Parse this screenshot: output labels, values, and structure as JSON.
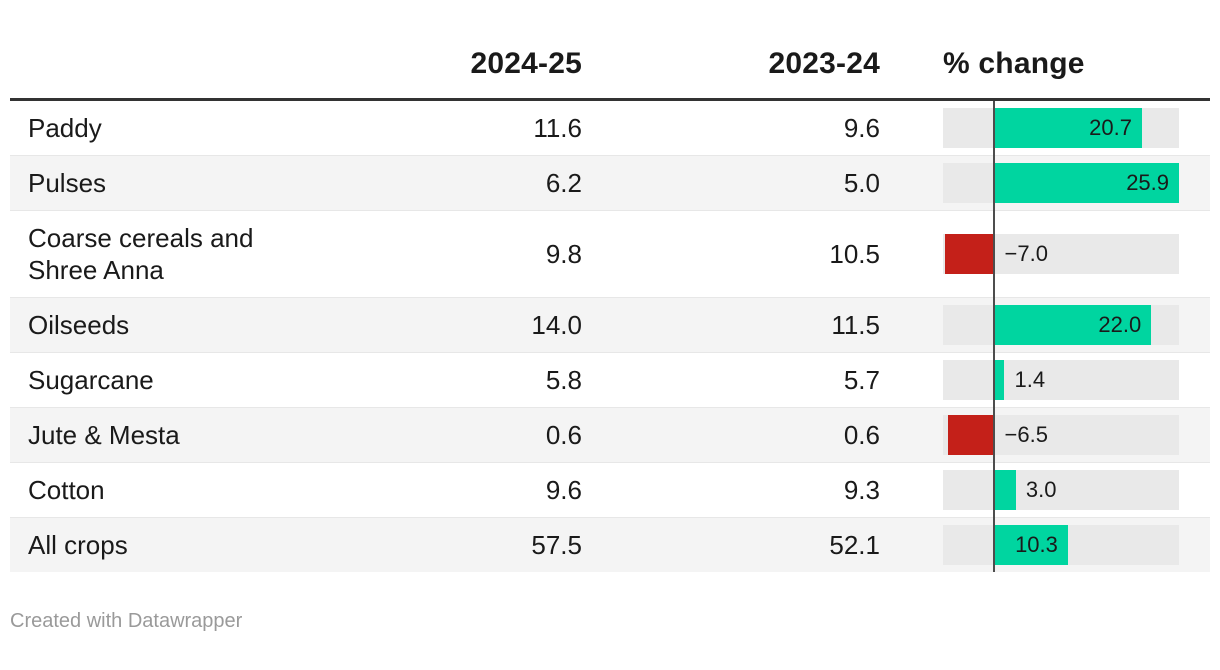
{
  "header": {
    "year_current": "2024-25",
    "year_previous": "2023-24",
    "change": "% change"
  },
  "rows": [
    {
      "label": "Paddy",
      "current": "11.6",
      "previous": "9.6",
      "change": 20.7,
      "change_label": "20.7"
    },
    {
      "label": "Pulses",
      "current": "6.2",
      "previous": "5.0",
      "change": 25.9,
      "change_label": "25.9"
    },
    {
      "label": "Coarse cereals and Shree Anna",
      "current": "9.8",
      "previous": "10.5",
      "change": -7.0,
      "change_label": "−7.0"
    },
    {
      "label": "Oilseeds",
      "current": "14.0",
      "previous": "11.5",
      "change": 22.0,
      "change_label": "22.0"
    },
    {
      "label": "Sugarcane",
      "current": "5.8",
      "previous": "5.7",
      "change": 1.4,
      "change_label": "1.4"
    },
    {
      "label": "Jute & Mesta",
      "current": "0.6",
      "previous": "0.6",
      "change": -6.5,
      "change_label": "−6.5"
    },
    {
      "label": "Cotton",
      "current": "9.6",
      "previous": "9.3",
      "change": 3.0,
      "change_label": "3.0"
    },
    {
      "label": "All crops",
      "current": "57.5",
      "previous": "52.1",
      "change": 10.3,
      "change_label": "10.3"
    }
  ],
  "footer": {
    "credit": "Created with Datawrapper"
  },
  "colors": {
    "positive": "#00d5a0",
    "negative": "#c42019",
    "track": "#e9e9e9",
    "row_alt": "#f4f4f4",
    "zero_line": "#4d4d4d",
    "header_rule": "#333333",
    "text": "#1a1a1a",
    "credit_text": "#9a9a9a"
  },
  "chart_data": {
    "type": "table",
    "title": "",
    "columns": [
      "crop",
      "2024-25",
      "2023-24",
      "% change"
    ],
    "rows": [
      [
        "Paddy",
        11.6,
        9.6,
        20.7
      ],
      [
        "Pulses",
        6.2,
        5.0,
        25.9
      ],
      [
        "Coarse cereals and Shree Anna",
        9.8,
        10.5,
        -7.0
      ],
      [
        "Oilseeds",
        14.0,
        11.5,
        22.0
      ],
      [
        "Sugarcane",
        5.8,
        5.7,
        1.4
      ],
      [
        "Jute & Mesta",
        0.6,
        0.6,
        -6.5
      ],
      [
        "Cotton",
        9.6,
        9.3,
        3.0
      ],
      [
        "All crops",
        57.5,
        52.1,
        10.3
      ]
    ],
    "bar_column": "% change",
    "bar_range": [
      -7.2,
      25.9
    ],
    "positive_color": "#00d5a0",
    "negative_color": "#c42019",
    "credit": "Created with Datawrapper"
  }
}
